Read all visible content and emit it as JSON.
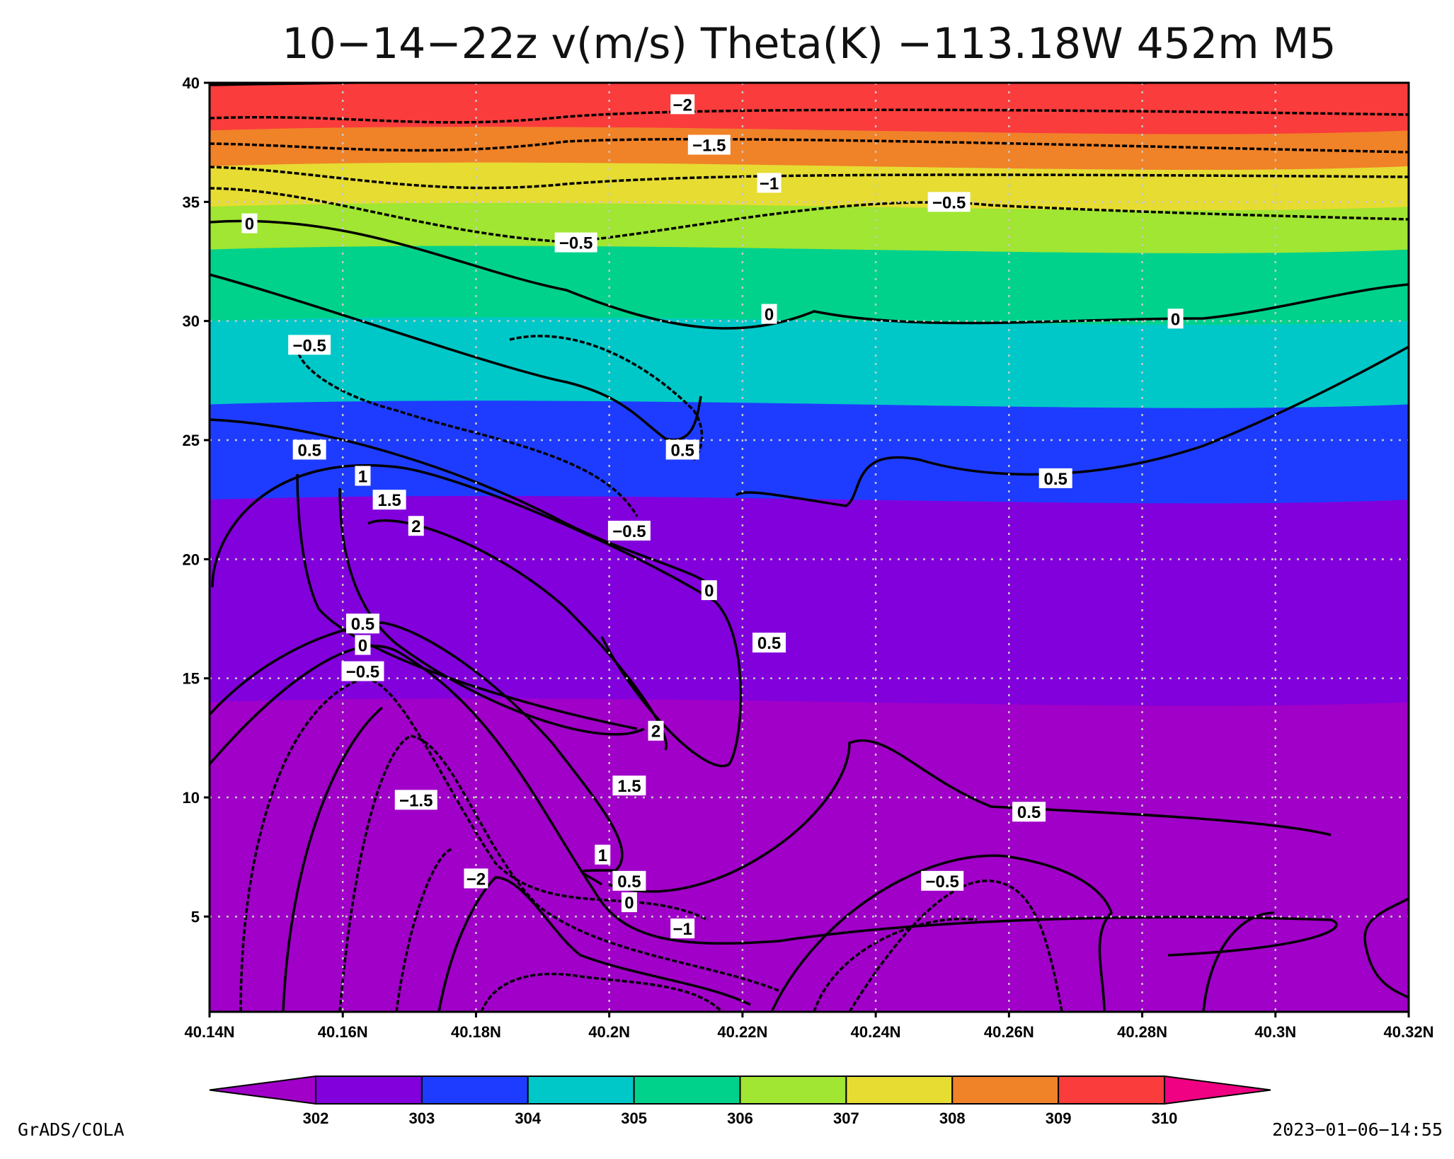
{
  "chart_data": {
    "type": "heatmap",
    "title": "10−14−22z v(m/s) Theta(K) −113.18W 452m M5",
    "x_ticks": [
      "40.14N",
      "40.16N",
      "40.18N",
      "40.2N",
      "40.22N",
      "40.24N",
      "40.26N",
      "40.28N",
      "40.3N",
      "40.32N"
    ],
    "x_values": [
      40.14,
      40.16,
      40.18,
      40.2,
      40.22,
      40.24,
      40.26,
      40.28,
      40.3,
      40.32
    ],
    "y_ticks": [
      "5",
      "10",
      "15",
      "20",
      "25",
      "30",
      "35",
      "40"
    ],
    "y_values": [
      5,
      10,
      15,
      20,
      25,
      30,
      35,
      40
    ],
    "xlim": [
      40.14,
      40.32
    ],
    "ylim": [
      1,
      40
    ],
    "grid": true,
    "colorbar": {
      "levels": [
        "302",
        "303",
        "304",
        "305",
        "306",
        "307",
        "308",
        "309",
        "310"
      ],
      "colors": [
        "#a000c8",
        "#8200dc",
        "#1e3cff",
        "#00c8c8",
        "#00d28c",
        "#a0e632",
        "#e6dc32",
        "#f08228",
        "#fa3c3c",
        "#f00082"
      ]
    },
    "theta_layers": [
      {
        "color": "#fa3c3c",
        "y_bottom": 38.0
      },
      {
        "color": "#f08228",
        "y_bottom": 36.5
      },
      {
        "color": "#e6dc32",
        "y_bottom": 34.8
      },
      {
        "color": "#a0e632",
        "y_bottom": 33.0
      },
      {
        "color": "#00d28c",
        "y_bottom": 30.0
      },
      {
        "color": "#00c8c8",
        "y_bottom": 26.5
      },
      {
        "color": "#1e3cff",
        "y_bottom": 22.5
      },
      {
        "color": "#8200dc",
        "y_bottom": 14.0
      }
    ],
    "contour_labels": [
      {
        "text": "−2",
        "x": 40.211,
        "y": 39.1
      },
      {
        "text": "−1.5",
        "x": 40.215,
        "y": 37.4
      },
      {
        "text": "−1",
        "x": 40.224,
        "y": 35.8
      },
      {
        "text": "−0.5",
        "x": 40.251,
        "y": 35.0
      },
      {
        "text": "−0.5",
        "x": 40.195,
        "y": 33.3
      },
      {
        "text": "0",
        "x": 40.146,
        "y": 34.1
      },
      {
        "text": "0",
        "x": 40.224,
        "y": 30.3
      },
      {
        "text": "0",
        "x": 40.285,
        "y": 30.1
      },
      {
        "text": "−0.5",
        "x": 40.155,
        "y": 29.0
      },
      {
        "text": "0.5",
        "x": 40.211,
        "y": 24.6
      },
      {
        "text": "0.5",
        "x": 40.155,
        "y": 24.6
      },
      {
        "text": "0.5",
        "x": 40.267,
        "y": 23.4
      },
      {
        "text": "1",
        "x": 40.163,
        "y": 23.5
      },
      {
        "text": "1.5",
        "x": 40.167,
        "y": 22.5
      },
      {
        "text": "2",
        "x": 40.171,
        "y": 21.4
      },
      {
        "text": "−0.5",
        "x": 40.203,
        "y": 21.2
      },
      {
        "text": "0",
        "x": 40.215,
        "y": 18.7
      },
      {
        "text": "0.5",
        "x": 40.224,
        "y": 16.5
      },
      {
        "text": "0.5",
        "x": 40.163,
        "y": 17.3
      },
      {
        "text": "0",
        "x": 40.163,
        "y": 16.4
      },
      {
        "text": "−0.5",
        "x": 40.163,
        "y": 15.3
      },
      {
        "text": "2",
        "x": 40.207,
        "y": 12.8
      },
      {
        "text": "1.5",
        "x": 40.203,
        "y": 10.5
      },
      {
        "text": "−1.5",
        "x": 40.171,
        "y": 9.9
      },
      {
        "text": "0.5",
        "x": 40.263,
        "y": 9.4
      },
      {
        "text": "1",
        "x": 40.199,
        "y": 7.6
      },
      {
        "text": "−2",
        "x": 40.18,
        "y": 6.6
      },
      {
        "text": "0.5",
        "x": 40.203,
        "y": 6.5
      },
      {
        "text": "−0.5",
        "x": 40.25,
        "y": 6.5
      },
      {
        "text": "0",
        "x": 40.203,
        "y": 5.6
      },
      {
        "text": "−1",
        "x": 40.211,
        "y": 4.5
      }
    ]
  },
  "footer": {
    "left": "GrADS/COLA",
    "right": "2023−01−06−14:55"
  }
}
